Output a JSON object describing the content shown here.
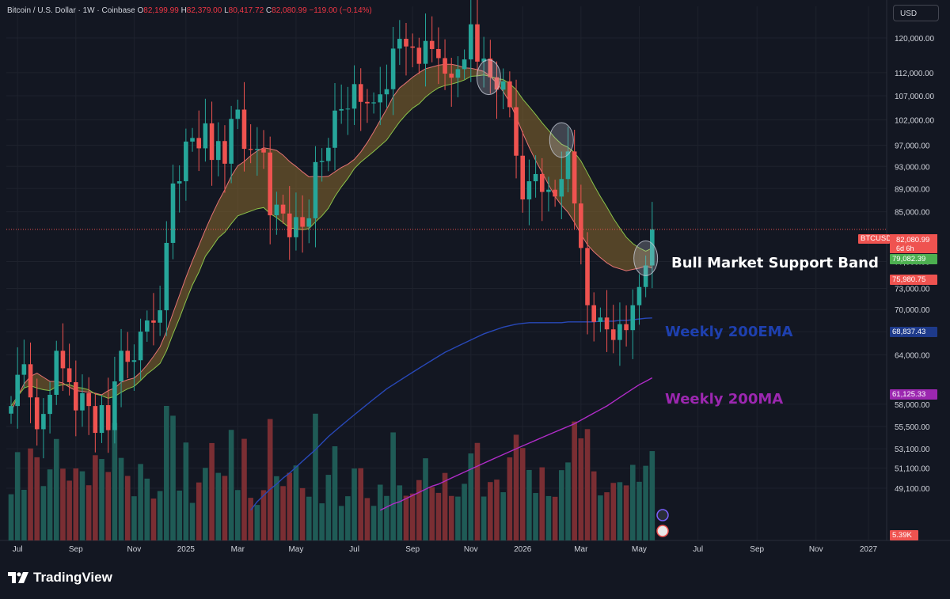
{
  "header": {
    "symbol": "Bitcoin / U.S. Dollar · 1W · Coinbase",
    "open_label": "O",
    "open": "82,199.99",
    "high_label": "H",
    "high": "82,379.00",
    "low_label": "L",
    "low": "80,417.72",
    "close_label": "C",
    "close": "82,080.99",
    "change": "−119.00 (−0.14%)",
    "currency_button": "USD"
  },
  "branding": {
    "logo_text": "TradingView",
    "logo_icon": "tradingview-logo-icon"
  },
  "colors": {
    "background": "#131722",
    "bull": "#26a69a",
    "bear": "#ef5350",
    "band_fill": "#8a6a2e",
    "ema200": "#1e3a8a",
    "ma200": "#9c27b0",
    "grid": "#1e222d",
    "text": "#d1d4dc"
  },
  "annotations": [
    {
      "text": "Bull Market Support Band",
      "color": "#ffffff"
    },
    {
      "text": "Weekly 200EMA",
      "color": "#1e40af"
    },
    {
      "text": "Weekly 200MA",
      "color": "#9c27b0"
    }
  ],
  "price_badges": [
    {
      "text": "BTCUSD",
      "bg": "#ef5350"
    },
    {
      "text": "82,080.99",
      "bg": "#ef5350",
      "sub": "6d 6h"
    },
    {
      "text": "79,082.39",
      "bg": "#4caf50"
    },
    {
      "text": "75,980.75",
      "bg": "#ef5350"
    },
    {
      "text": "68,837.43",
      "bg": "#1e3a8a"
    },
    {
      "text": "61,125.33",
      "bg": "#9c27b0"
    },
    {
      "text": "5.39K",
      "bg": "#ef5350"
    }
  ],
  "chart_data": {
    "type": "candlestick",
    "title": "Bitcoin / U.S. Dollar · 1W · Coinbase",
    "y_scale": "log",
    "ylim": [
      45000,
      130000
    ],
    "y_ticks": [
      120000,
      112000,
      107000,
      102000,
      97000,
      93000,
      89000,
      85000,
      77000,
      73000,
      70000,
      67000,
      64000,
      58000,
      55500,
      53100,
      51100,
      49100
    ],
    "y_tick_labels": [
      "120,000.00",
      "112,000.00",
      "107,000.00",
      "102,000.00",
      "97,000.00",
      "93,000.00",
      "89,000.00",
      "85,000.00",
      "77,000.00",
      "73,000.00",
      "70,000.00",
      "67,000.00",
      "64,000.00",
      "58,000.00",
      "55,500.00",
      "53,100.00",
      "51,100.00",
      "49,100.00"
    ],
    "x_ticks": [
      "Jul",
      "Sep",
      "Nov",
      "2025",
      "Mar",
      "May",
      "Jul",
      "Sep",
      "Nov",
      "2026",
      "Mar",
      "May",
      "Jul",
      "Sep",
      "Nov",
      "2027"
    ],
    "x_tick_weeks": [
      1,
      10,
      19,
      27,
      35,
      44,
      53,
      62,
      71,
      79,
      88,
      97,
      106,
      115,
      124,
      132
    ],
    "weekly_close": [
      57800,
      61500,
      62800,
      58800,
      55200,
      56900,
      59100,
      64500,
      62300,
      60600,
      57300,
      59300,
      57800,
      54800,
      57900,
      55100,
      60700,
      64500,
      63100,
      63300,
      67000,
      68500,
      68200,
      69900,
      79900,
      89900,
      90300,
      97700,
      98400,
      96400,
      101300,
      94200,
      97800,
      93500,
      102200,
      104100,
      96300,
      96100,
      96300,
      95600,
      84400,
      86200,
      84700,
      80800,
      84100,
      82500,
      83900,
      93800,
      94000,
      96500,
      103900,
      104200,
      104300,
      109500,
      105700,
      105400,
      105600,
      107300,
      108400,
      117500,
      119800,
      118000,
      117700,
      114000,
      119300,
      117400,
      115300,
      111800,
      110900,
      112800,
      115000,
      123300,
      114500,
      115200,
      111000,
      108300,
      110100,
      104600,
      95000,
      87100,
      90300,
      91600,
      88400,
      88800,
      87600,
      90700,
      95800,
      86400,
      79100,
      70600,
      68300,
      68900,
      67300,
      65900,
      68000,
      67200,
      70600,
      73200,
      76400,
      82081
    ],
    "band_sma20_week_start": 0,
    "band_sma20": [
      57100,
      58900,
      60400,
      61300,
      61700,
      61200,
      60700,
      60700,
      60500,
      60000,
      59600,
      59500,
      59400,
      59300,
      59100,
      59600,
      59900,
      60600,
      60900,
      61100,
      61800,
      62700,
      63800,
      65000,
      67000,
      69500,
      72000,
      74600,
      77100,
      79500,
      82000,
      84400,
      86700,
      88800,
      91200,
      93100,
      93900,
      95000,
      95900,
      96500,
      96300,
      96000,
      95100,
      93900,
      93000,
      92000,
      91100,
      91200,
      91100,
      91200,
      92000,
      92800,
      93400,
      94300,
      95700,
      97500,
      99600,
      101900,
      104200,
      106800,
      108700,
      109800,
      111000,
      112000,
      112900,
      113300,
      113700,
      113900,
      113900,
      113600,
      113100,
      113000,
      112700,
      112300,
      111200,
      109700,
      107900,
      105600,
      102600,
      99400,
      96600,
      94100,
      91900,
      89700,
      87600,
      86100,
      84900,
      83200,
      81300,
      79600,
      78500,
      77600,
      76800,
      76200,
      75900,
      75600,
      75800,
      76000,
      76300,
      76000
    ],
    "band_ema21": [
      57800,
      58900,
      59900,
      60200,
      59900,
      59700,
      59600,
      60100,
      60300,
      60300,
      60000,
      59900,
      59700,
      59200,
      59000,
      58700,
      58900,
      59400,
      59800,
      60100,
      60800,
      61600,
      62200,
      62900,
      64500,
      66700,
      68800,
      71200,
      73500,
      75400,
      77800,
      79200,
      80700,
      81600,
      83000,
      84300,
      84700,
      85100,
      85500,
      85700,
      84700,
      84000,
      83200,
      82300,
      82200,
      82000,
      82200,
      83300,
      84300,
      85600,
      87600,
      89300,
      90800,
      92600,
      93800,
      94800,
      95800,
      96900,
      98000,
      99800,
      101600,
      103100,
      104400,
      105300,
      106700,
      107800,
      108700,
      109200,
      109500,
      109900,
      110400,
      111200,
      111300,
      111500,
      111200,
      110700,
      110500,
      109600,
      108300,
      106300,
      104700,
      103100,
      101400,
      99900,
      98400,
      97200,
      96600,
      95600,
      94000,
      91800,
      89600,
      87600,
      85800,
      83900,
      82300,
      80800,
      79800,
      79100,
      78600,
      79082
    ],
    "ema200": [
      null,
      null,
      null,
      null,
      null,
      null,
      null,
      null,
      null,
      null,
      null,
      null,
      null,
      null,
      null,
      null,
      null,
      null,
      null,
      null,
      null,
      null,
      null,
      null,
      null,
      null,
      null,
      null,
      null,
      null,
      null,
      null,
      null,
      null,
      null,
      null,
      null,
      47000,
      47800,
      48400,
      49000,
      49500,
      50100,
      50600,
      51200,
      51800,
      52400,
      53000,
      53700,
      54400,
      55000,
      55600,
      56200,
      56800,
      57400,
      58000,
      58600,
      59200,
      59800,
      60300,
      60800,
      61300,
      61800,
      62300,
      62800,
      63300,
      63800,
      64300,
      64700,
      65100,
      65500,
      65900,
      66300,
      66700,
      67000,
      67300,
      67600,
      67800,
      68000,
      68100,
      68200,
      68200,
      68200,
      68200,
      68200,
      68200,
      68300,
      68300,
      68300,
      68300,
      68300,
      68400,
      68400,
      68400,
      68500,
      68500,
      68600,
      68700,
      68800,
      68837
    ],
    "ma200": [
      null,
      null,
      null,
      null,
      null,
      null,
      null,
      null,
      null,
      null,
      null,
      null,
      null,
      null,
      null,
      null,
      null,
      null,
      null,
      null,
      null,
      null,
      null,
      null,
      null,
      null,
      null,
      null,
      null,
      null,
      null,
      null,
      null,
      null,
      null,
      null,
      null,
      null,
      null,
      null,
      null,
      null,
      null,
      null,
      null,
      null,
      null,
      null,
      null,
      null,
      null,
      null,
      null,
      null,
      null,
      null,
      null,
      47000,
      47300,
      47600,
      47800,
      48100,
      48400,
      48700,
      49000,
      49300,
      49500,
      49800,
      50100,
      50400,
      50700,
      51000,
      51300,
      51600,
      51900,
      52200,
      52500,
      52800,
      53100,
      53400,
      53700,
      54000,
      54300,
      54600,
      54900,
      55200,
      55500,
      55800,
      56200,
      56600,
      57000,
      57400,
      57800,
      58300,
      58800,
      59300,
      59800,
      60300,
      60700,
      61125
    ],
    "current_price": 82080.99
  }
}
